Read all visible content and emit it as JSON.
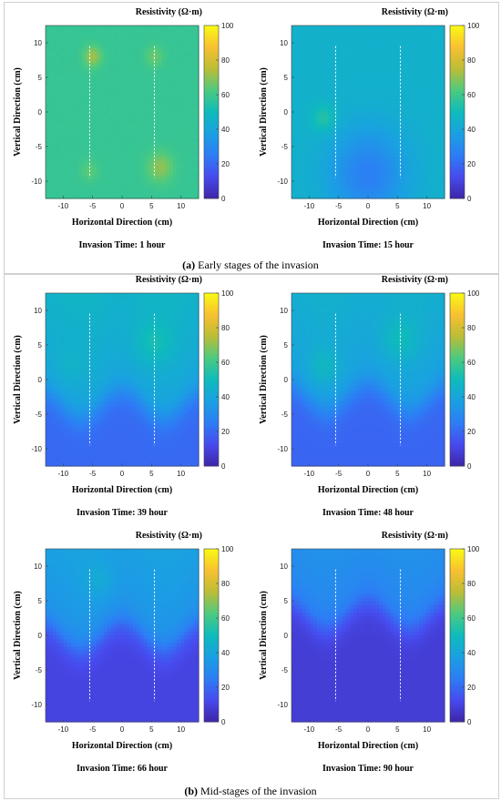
{
  "captions": [
    {
      "label": "(a)",
      "text": " Early stages of the invasion"
    },
    {
      "label": "(b)",
      "text": " Mid-stages of the invasion"
    }
  ],
  "colormap": "parula",
  "chart_data": [
    {
      "type": "heatmap",
      "title": "Invasion Time: 1 hour",
      "xlabel": "Horizontal Direction (cm)",
      "ylabel": "Vertical Direction (cm)",
      "colorbar_label": "Resistivity (Ω·m)",
      "xlim": [
        -13,
        13
      ],
      "ylim": [
        -12.5,
        12.5
      ],
      "clim": [
        0,
        100
      ],
      "xticks": [
        -10,
        -5,
        0,
        5,
        10
      ],
      "yticks": [
        10,
        5,
        0,
        -5,
        -10
      ],
      "cticks": [
        100,
        80,
        60,
        40,
        20,
        0
      ],
      "electrode_lines_x": [
        -5.5,
        5.5
      ],
      "electrode_lines_y": [
        -9.5,
        9.5
      ],
      "base_resistivity": 58,
      "front_level": null,
      "anomalies": [
        {
          "x": -5,
          "y": 8,
          "r": 1.5,
          "v": 72
        },
        {
          "x": 5.5,
          "y": 8,
          "r": 1.5,
          "v": 66
        },
        {
          "x": 6.5,
          "y": -8,
          "r": 2.2,
          "v": 70
        },
        {
          "x": -5.5,
          "y": -8.5,
          "r": 1.5,
          "v": 64
        }
      ]
    },
    {
      "type": "heatmap",
      "title": "Invasion Time: 15 hour",
      "xlabel": "Horizontal Direction (cm)",
      "ylabel": "Vertical Direction (cm)",
      "colorbar_label": "Resistivity (Ω·m)",
      "xlim": [
        -13,
        13
      ],
      "ylim": [
        -12.5,
        12.5
      ],
      "clim": [
        0,
        100
      ],
      "xticks": [
        -10,
        -5,
        0,
        5,
        10
      ],
      "yticks": [
        10,
        5,
        0,
        -5,
        -10
      ],
      "cticks": [
        100,
        80,
        60,
        40,
        20,
        0
      ],
      "electrode_lines_x": [
        -5.5,
        5.5
      ],
      "electrode_lines_y": [
        -9.5,
        9.5
      ],
      "base_resistivity": 45,
      "front_level": null,
      "anomalies": [
        {
          "x": -7.5,
          "y": -1,
          "r": 2.0,
          "v": 56
        },
        {
          "x": 0,
          "y": -9,
          "r": 6.5,
          "v": 26
        }
      ]
    },
    {
      "type": "heatmap",
      "title": "Invasion Time: 39 hour",
      "xlabel": "Horizontal Direction (cm)",
      "ylabel": "Vertical Direction (cm)",
      "colorbar_label": "Resistivity (Ω·m)",
      "xlim": [
        -13,
        13
      ],
      "ylim": [
        -12.5,
        12.5
      ],
      "clim": [
        0,
        100
      ],
      "xticks": [
        -10,
        -5,
        0,
        5,
        10
      ],
      "yticks": [
        10,
        5,
        0,
        -5,
        -10
      ],
      "cticks": [
        100,
        80,
        60,
        40,
        20,
        0
      ],
      "electrode_lines_x": [
        -5.5,
        5.5
      ],
      "electrode_lines_y": [
        -9.5,
        9.5
      ],
      "base_resistivity": 40,
      "front_level": -2.5,
      "front_upper": 40,
      "front_lower": 20,
      "anomalies": [
        {
          "x": 5.5,
          "y": 5.5,
          "r": 3.0,
          "v": 52
        },
        {
          "x": -8.5,
          "y": 2.5,
          "r": 2.5,
          "v": 46
        }
      ]
    },
    {
      "type": "heatmap",
      "title": "Invasion Time: 48 hour",
      "xlabel": "Horizontal Direction (cm)",
      "ylabel": "Vertical Direction (cm)",
      "colorbar_label": "Resistivity (Ω·m)",
      "xlim": [
        -13,
        13
      ],
      "ylim": [
        -12.5,
        12.5
      ],
      "clim": [
        0,
        100
      ],
      "xticks": [
        -10,
        -5,
        0,
        5,
        10
      ],
      "yticks": [
        10,
        5,
        0,
        -5,
        -10
      ],
      "cticks": [
        100,
        80,
        60,
        40,
        20,
        0
      ],
      "electrode_lines_x": [
        -5.5,
        5.5
      ],
      "electrode_lines_y": [
        -9.5,
        9.5
      ],
      "base_resistivity": 38,
      "front_level": -1.5,
      "front_upper": 38,
      "front_lower": 19,
      "anomalies": [
        {
          "x": 5.5,
          "y": 6,
          "r": 3.0,
          "v": 50
        },
        {
          "x": -7.5,
          "y": 2,
          "r": 2.5,
          "v": 48
        }
      ]
    },
    {
      "type": "heatmap",
      "title": "Invasion Time: 66 hour",
      "xlabel": "Horizontal Direction (cm)",
      "ylabel": "Vertical Direction (cm)",
      "colorbar_label": "Resistivity (Ω·m)",
      "xlim": [
        -13,
        13
      ],
      "ylim": [
        -12.5,
        12.5
      ],
      "clim": [
        0,
        100
      ],
      "xticks": [
        -10,
        -5,
        0,
        5,
        10
      ],
      "yticks": [
        10,
        5,
        0,
        -5,
        -10
      ],
      "cticks": [
        100,
        80,
        60,
        40,
        20,
        0
      ],
      "electrode_lines_x": [
        -5.5,
        5.5
      ],
      "electrode_lines_y": [
        -9.5,
        9.5
      ],
      "base_resistivity": 10,
      "front_level": 1.0,
      "front_upper": 33,
      "front_lower": 10,
      "anomalies": [
        {
          "x": -4,
          "y": 8,
          "r": 2.5,
          "v": 42
        }
      ]
    },
    {
      "type": "heatmap",
      "title": "Invasion Time: 90 hour",
      "xlabel": "Horizontal Direction (cm)",
      "ylabel": "Vertical Direction (cm)",
      "colorbar_label": "Resistivity (Ω·m)",
      "xlim": [
        -13,
        13
      ],
      "ylim": [
        -12.5,
        12.5
      ],
      "clim": [
        0,
        100
      ],
      "xticks": [
        -10,
        -5,
        0,
        5,
        10
      ],
      "yticks": [
        10,
        5,
        0,
        -5,
        -10
      ],
      "cticks": [
        100,
        80,
        60,
        40,
        20,
        0
      ],
      "electrode_lines_x": [
        -5.5,
        5.5
      ],
      "electrode_lines_y": [
        -9.5,
        9.5
      ],
      "base_resistivity": 8,
      "front_level": 4.0,
      "front_upper": 28,
      "front_lower": 8,
      "anomalies": []
    }
  ]
}
